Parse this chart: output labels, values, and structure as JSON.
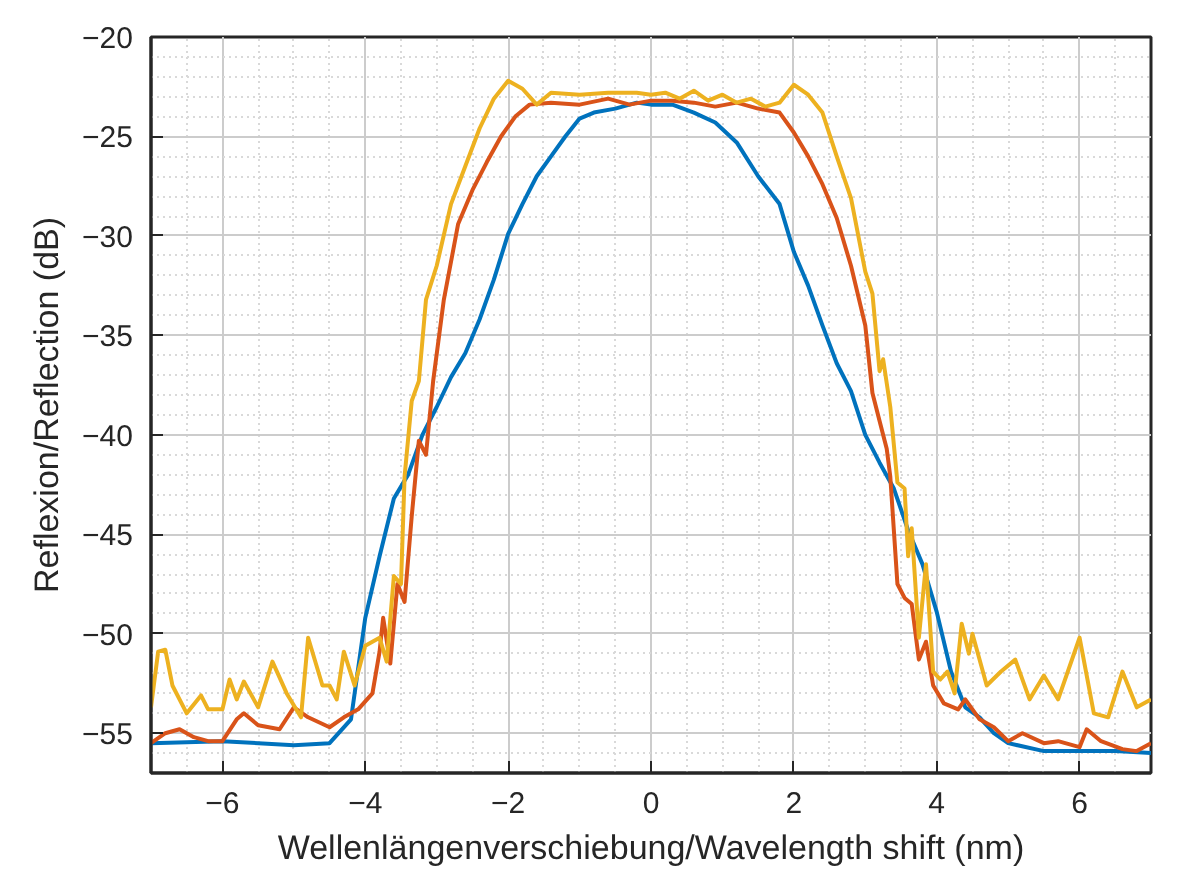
{
  "chart_data": {
    "type": "line",
    "xlabel": "Wellenlängenverschiebung/Wavelength shift (nm)",
    "ylabel": "Reflexion/Reflection (dB)",
    "xlim": [
      -7,
      7
    ],
    "ylim": [
      -57,
      -20
    ],
    "xticks": [
      -6,
      -4,
      -2,
      0,
      2,
      4,
      6
    ],
    "yticks": [
      -55,
      -50,
      -45,
      -40,
      -35,
      -30,
      -25,
      -20
    ],
    "grid": true,
    "marker": "none",
    "line_style": "solid",
    "series": [
      {
        "color": "#0072bd",
        "x": [
          -7,
          -6,
          -5,
          -4.5,
          -4.2,
          -4.0,
          -3.8,
          -3.6,
          -3.4,
          -3.2,
          -3.0,
          -2.8,
          -2.6,
          -2.4,
          -2.2,
          -2.0,
          -1.8,
          -1.6,
          -1.4,
          -1.2,
          -1.0,
          -0.8,
          -0.5,
          -0.2,
          0,
          0.3,
          0.6,
          0.9,
          1.2,
          1.5,
          1.8,
          2.0,
          2.2,
          2.4,
          2.6,
          2.8,
          3.0,
          3.2,
          3.4,
          3.6,
          3.8,
          4.0,
          4.2,
          4.4,
          4.6,
          4.8,
          5.0,
          5.5,
          6,
          6.5,
          7
        ],
        "values": [
          -55.5,
          -55.4,
          -55.6,
          -55.5,
          -54.3,
          -49.2,
          -46.1,
          -43.2,
          -42,
          -40,
          -38.6,
          -37.1,
          -35.9,
          -34.2,
          -32.2,
          -29.9,
          -28.4,
          -27,
          -26,
          -25,
          -24.1,
          -23.8,
          -23.6,
          -23.3,
          -23.4,
          -23.4,
          -23.8,
          -24.3,
          -25.3,
          -27,
          -28.4,
          -30.8,
          -32.5,
          -34.5,
          -36.4,
          -37.8,
          -40,
          -41.4,
          -42.7,
          -44.8,
          -46.5,
          -48.9,
          -51.9,
          -53.7,
          -54.2,
          -55,
          -55.5,
          -55.9,
          -55.9,
          -55.9,
          -56
        ]
      },
      {
        "color": "#d95319",
        "x": [
          -7,
          -6.8,
          -6.6,
          -6.4,
          -6.2,
          -6.0,
          -5.8,
          -5.7,
          -5.5,
          -5.2,
          -5.0,
          -4.8,
          -4.5,
          -4.3,
          -4.1,
          -3.9,
          -3.8,
          -3.75,
          -3.65,
          -3.55,
          -3.45,
          -3.35,
          -3.25,
          -3.15,
          -3.05,
          -2.9,
          -2.7,
          -2.5,
          -2.3,
          -2.1,
          -1.9,
          -1.7,
          -1.4,
          -1.0,
          -0.6,
          -0.3,
          0,
          0.3,
          0.6,
          0.9,
          1.2,
          1.5,
          1.8,
          2.0,
          2.2,
          2.4,
          2.6,
          2.8,
          3.0,
          3.1,
          3.2,
          3.3,
          3.35,
          3.45,
          3.55,
          3.65,
          3.75,
          3.85,
          3.95,
          4.1,
          4.3,
          4.4,
          4.6,
          4.8,
          5.0,
          5.2,
          5.5,
          5.7,
          6.0,
          6.1,
          6.3,
          6.6,
          6.8,
          7
        ],
        "values": [
          -55.5,
          -55,
          -54.8,
          -55.2,
          -55.4,
          -55.4,
          -54.3,
          -54,
          -54.6,
          -54.8,
          -53.7,
          -54.2,
          -54.7,
          -54.2,
          -53.8,
          -53,
          -50.9,
          -49.2,
          -51.5,
          -47.5,
          -48.4,
          -44.1,
          -40.3,
          -41,
          -37.3,
          -33.2,
          -29.4,
          -27.7,
          -26.3,
          -25,
          -24,
          -23.4,
          -23.3,
          -23.4,
          -23.1,
          -23.4,
          -23.2,
          -23.2,
          -23.3,
          -23.5,
          -23.3,
          -23.6,
          -23.8,
          -24.8,
          -26,
          -27.4,
          -29.1,
          -31.5,
          -34.5,
          -37.9,
          -39.3,
          -40.7,
          -42.1,
          -47.5,
          -48.2,
          -48.5,
          -51.3,
          -50.4,
          -52.6,
          -53.5,
          -53.8,
          -53.3,
          -54.3,
          -54.7,
          -55.4,
          -55,
          -55.5,
          -55.4,
          -55.7,
          -54.8,
          -55.4,
          -55.8,
          -55.9,
          -55.5
        ]
      },
      {
        "color": "#edb120",
        "x": [
          -7,
          -6.9,
          -6.8,
          -6.7,
          -6.5,
          -6.3,
          -6.2,
          -6.0,
          -5.9,
          -5.8,
          -5.7,
          -5.5,
          -5.3,
          -5.1,
          -4.9,
          -4.8,
          -4.6,
          -4.5,
          -4.4,
          -4.3,
          -4.15,
          -4.0,
          -3.8,
          -3.7,
          -3.6,
          -3.5,
          -3.45,
          -3.35,
          -3.25,
          -3.15,
          -3.0,
          -2.8,
          -2.6,
          -2.4,
          -2.2,
          -2.0,
          -1.8,
          -1.6,
          -1.4,
          -1.0,
          -0.6,
          -0.2,
          0,
          0.2,
          0.4,
          0.6,
          0.8,
          1.0,
          1.2,
          1.4,
          1.6,
          1.8,
          2.0,
          2.2,
          2.4,
          2.6,
          2.8,
          3.0,
          3.1,
          3.2,
          3.25,
          3.35,
          3.45,
          3.55,
          3.6,
          3.65,
          3.75,
          3.85,
          3.95,
          4.05,
          4.15,
          4.25,
          4.35,
          4.45,
          4.5,
          4.7,
          4.9,
          5.1,
          5.3,
          5.5,
          5.7,
          6.0,
          6.2,
          6.4,
          6.6,
          6.8,
          7
        ],
        "values": [
          -53.7,
          -50.9,
          -50.8,
          -52.6,
          -54,
          -53.1,
          -53.8,
          -53.8,
          -52.3,
          -53.3,
          -52.4,
          -53.7,
          -51.4,
          -53,
          -54.2,
          -50.2,
          -52.6,
          -52.6,
          -53.3,
          -50.9,
          -52.6,
          -50.6,
          -50.2,
          -51.4,
          -47.1,
          -47.5,
          -42.1,
          -38.3,
          -37.3,
          -33.2,
          -31.5,
          -28.4,
          -26.5,
          -24.6,
          -23.1,
          -22.2,
          -22.6,
          -23.4,
          -22.8,
          -22.9,
          -22.8,
          -22.8,
          -22.9,
          -22.8,
          -23.1,
          -22.7,
          -23.2,
          -22.9,
          -23.3,
          -23.1,
          -23.5,
          -23.3,
          -22.4,
          -22.9,
          -23.8,
          -26,
          -28.1,
          -31.8,
          -32.9,
          -36.8,
          -36.2,
          -38.6,
          -42.4,
          -42.7,
          -46.1,
          -44.7,
          -50.2,
          -46.5,
          -51.9,
          -52.3,
          -51.9,
          -53,
          -49.5,
          -51,
          -50,
          -52.6,
          -51.9,
          -51.3,
          -53.3,
          -52.1,
          -53.3,
          -50.2,
          -54,
          -54.2,
          -51.9,
          -53.7,
          -53.3
        ]
      }
    ]
  }
}
